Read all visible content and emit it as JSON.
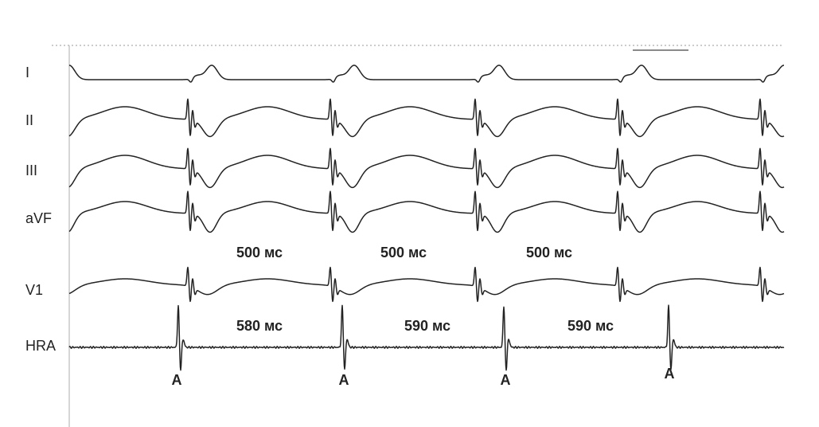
{
  "leads": [
    "I",
    "II",
    "III",
    "aVF",
    "V1",
    "HRA"
  ],
  "v_intervals": [
    "500 мс",
    "500 мс",
    "500 мс"
  ],
  "a_intervals": [
    "580 мс",
    "590 мс",
    "590 мс"
  ],
  "atrial_labels": [
    "A",
    "A",
    "A",
    "A"
  ]
}
